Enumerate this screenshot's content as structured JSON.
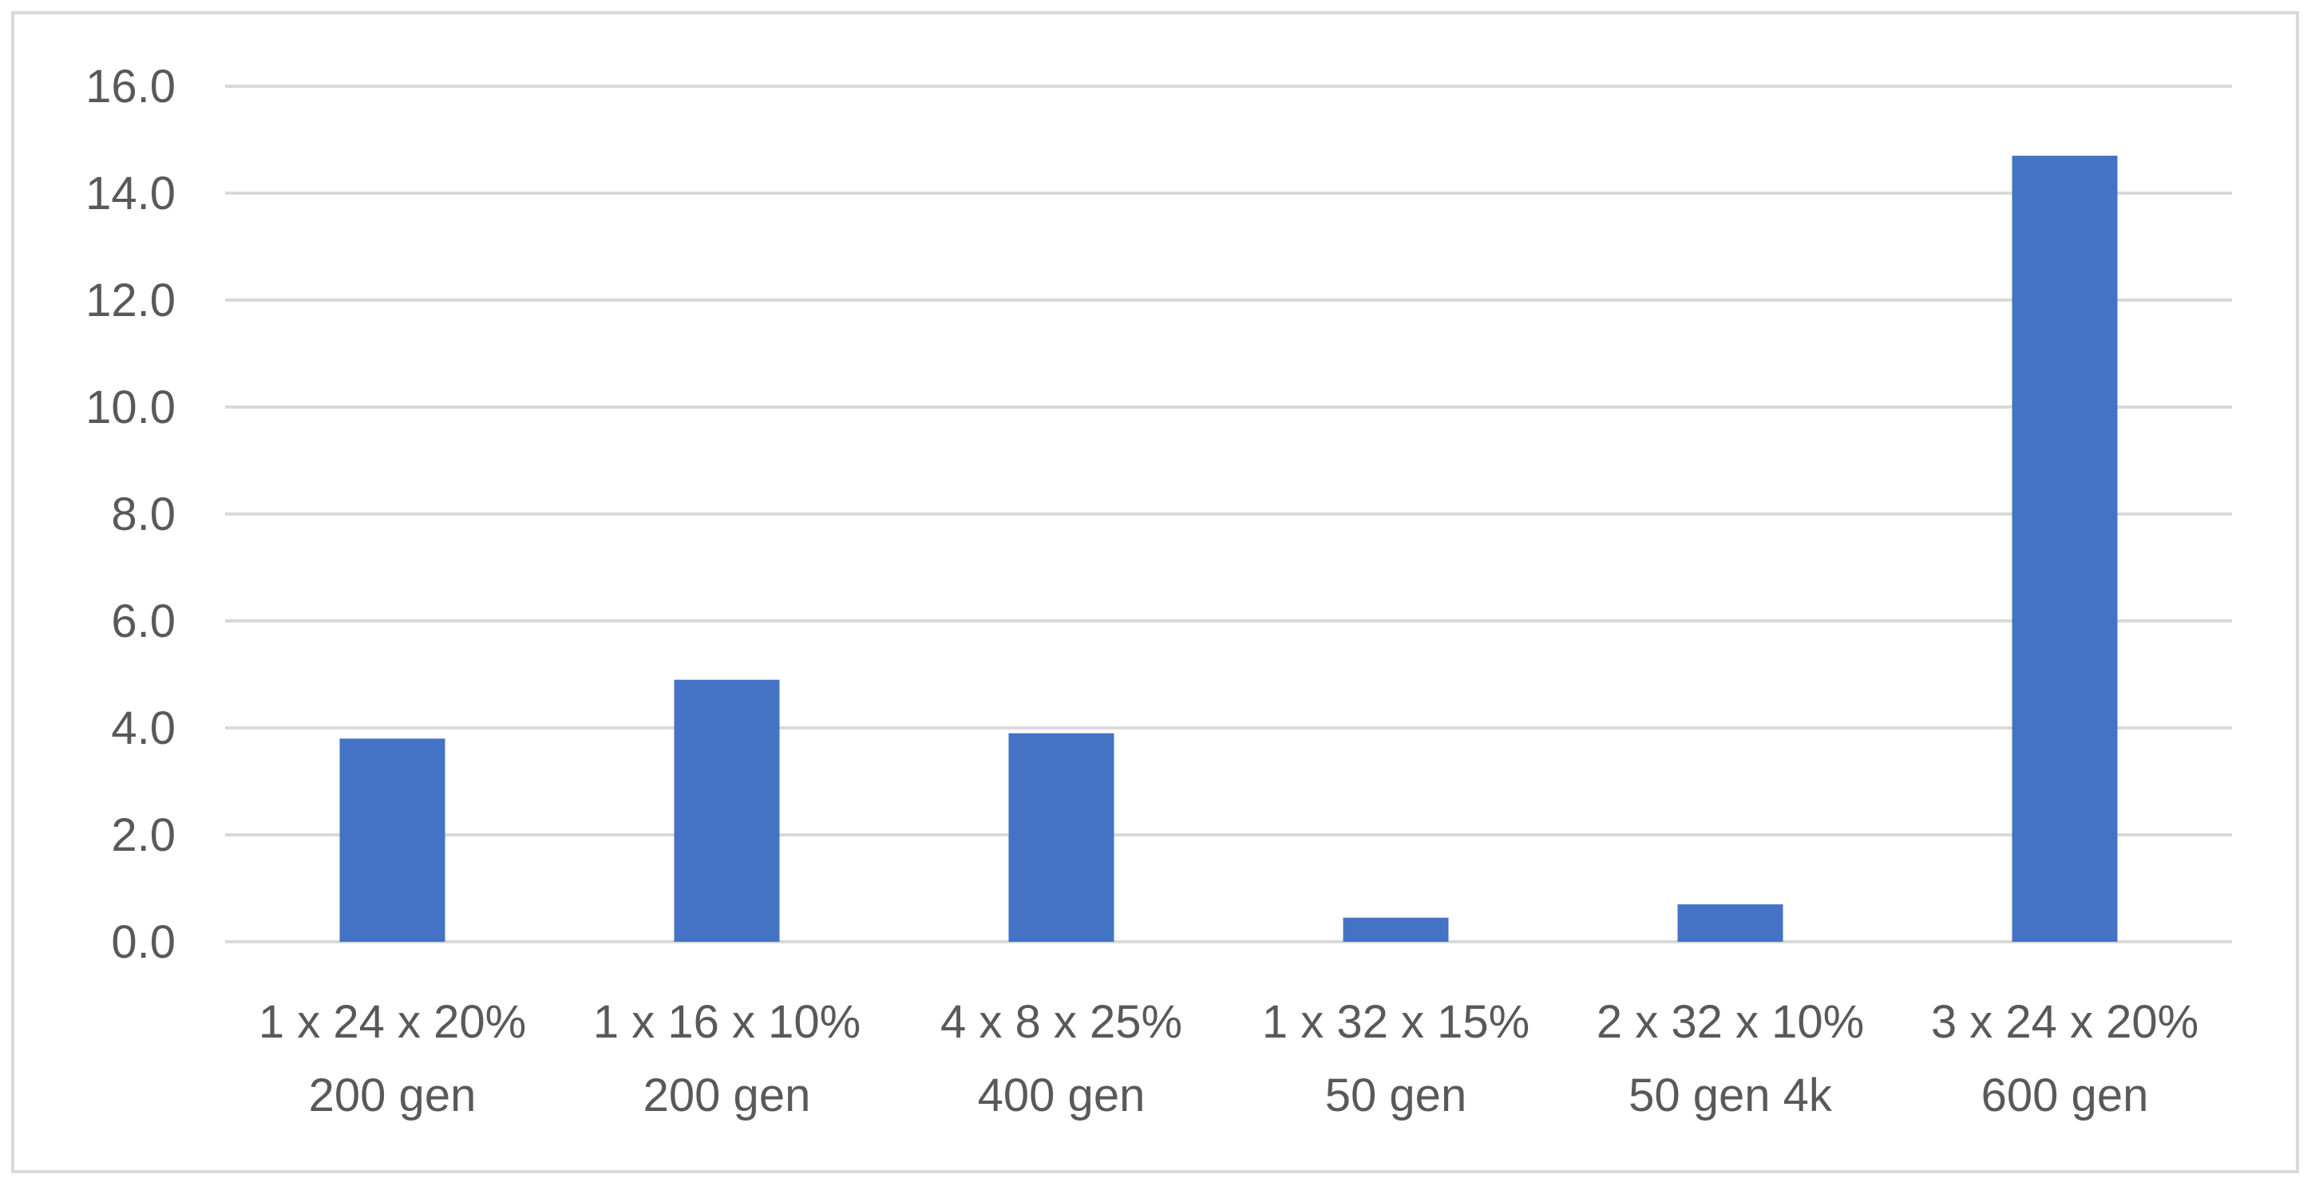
{
  "chart_data": {
    "type": "bar",
    "categories": [
      [
        "1 x 24 x 20%",
        "200 gen"
      ],
      [
        "1 x 16 x 10%",
        "200 gen"
      ],
      [
        "4 x 8 x 25%",
        "400 gen"
      ],
      [
        "1 x 32 x 15%",
        "50 gen"
      ],
      [
        "2 x 32 x 10%",
        "50 gen 4k"
      ],
      [
        "3 x 24 x 20%",
        "600 gen"
      ]
    ],
    "values": [
      3.8,
      4.9,
      3.9,
      0.45,
      0.7,
      14.7
    ],
    "ylim": [
      0,
      16
    ],
    "yticks": [
      "0.0",
      "2.0",
      "4.0",
      "6.0",
      "8.0",
      "10.0",
      "12.0",
      "14.0",
      "16.0"
    ],
    "title": "",
    "xlabel": "",
    "ylabel": "",
    "grid": true,
    "legend": "none",
    "colors": {
      "bar": "#4472C4",
      "grid": "#D9D9D9",
      "text": "#595959"
    }
  }
}
